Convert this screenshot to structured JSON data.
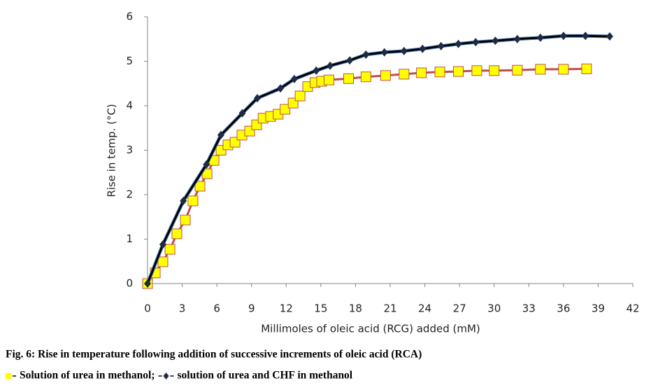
{
  "chart_data": {
    "type": "line",
    "x_label": "Millimoles of oleic acid (RCG) added (mM)",
    "y_label": "Rise in temp. (°C)",
    "caption": "Fig. 6: Rise in temperature following addition of successive increments of oleic acid (RCA)",
    "legend_separator": ";",
    "xlim": [
      0,
      42
    ],
    "xticks": [
      0,
      3,
      6,
      9,
      12,
      15,
      18,
      21,
      24,
      27,
      30,
      33,
      36,
      39,
      42
    ],
    "ylim": [
      0,
      6
    ],
    "yticks": [
      0,
      1,
      2,
      3,
      4,
      5,
      6
    ],
    "grid": false,
    "series": [
      {
        "name": "Solution of urea in methanol",
        "color": "#c0504d",
        "marker": "square",
        "marker_color": "#ffff00",
        "x": [
          0,
          0.67,
          1.33,
          1.94,
          2.54,
          3.27,
          3.93,
          4.54,
          5.15,
          5.75,
          6.36,
          6.96,
          7.57,
          8.17,
          8.84,
          9.44,
          10,
          10.65,
          11.3,
          11.9,
          12.6,
          13.2,
          13.86,
          14.5,
          15.07,
          15.7,
          17.4,
          18.9,
          20.6,
          22.2,
          23.7,
          25.3,
          26.9,
          28.5,
          30,
          32,
          34,
          36,
          38
        ],
        "values": [
          0,
          0.24,
          0.49,
          0.77,
          1.12,
          1.43,
          1.86,
          2.19,
          2.47,
          2.77,
          3.0,
          3.12,
          3.18,
          3.34,
          3.43,
          3.57,
          3.72,
          3.76,
          3.81,
          3.92,
          4.06,
          4.22,
          4.43,
          4.52,
          4.55,
          4.58,
          4.61,
          4.65,
          4.68,
          4.71,
          4.74,
          4.76,
          4.77,
          4.79,
          4.79,
          4.8,
          4.82,
          4.82,
          4.83
        ]
      },
      {
        "name": "solution of urea and CHF in methanol",
        "color": "#000000",
        "marker": "diamond",
        "marker_color": "#1f2a44",
        "x": [
          0,
          1.33,
          3.1,
          5.1,
          6.35,
          8.2,
          9.5,
          11.5,
          12.7,
          14.6,
          15.8,
          17.5,
          18.9,
          20.5,
          22.2,
          23.8,
          25.4,
          26.9,
          28.4,
          30.1,
          32,
          34,
          36,
          37.9,
          40
        ],
        "values": [
          0,
          0.88,
          1.86,
          2.68,
          3.34,
          3.83,
          4.17,
          4.39,
          4.6,
          4.79,
          4.9,
          5.02,
          5.15,
          5.2,
          5.23,
          5.28,
          5.34,
          5.39,
          5.43,
          5.46,
          5.5,
          5.53,
          5.57,
          5.57,
          5.56
        ]
      }
    ]
  }
}
